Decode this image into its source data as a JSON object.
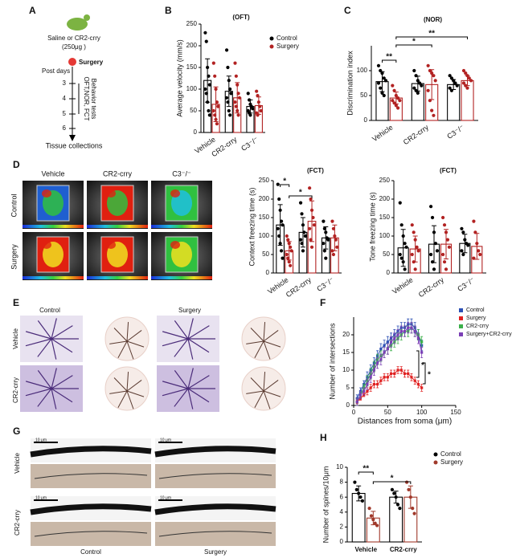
{
  "panel_labels": [
    "A",
    "B",
    "C",
    "D",
    "E",
    "F",
    "G",
    "H"
  ],
  "panel_a": {
    "treatment": "Saline or CR2-crry",
    "dose": "(250μg )",
    "event": "Surgery",
    "axis_title": "Post days",
    "days": [
      "3",
      "4",
      "5",
      "6"
    ],
    "tests": "OFT,NOR, FCT",
    "tests_sub": "Behavior tests",
    "end": "Tissue collections"
  },
  "panel_d": {
    "columns": [
      "Vehicle",
      "CR2-crry",
      "C3⁻/⁻"
    ],
    "rows": [
      "Control",
      "Surgery"
    ]
  },
  "panel_e": {
    "columns": [
      "Control",
      "Surgery"
    ],
    "rows": [
      "Vehicle",
      "CR2-crry"
    ]
  },
  "panel_g": {
    "columns": [
      "Control",
      "Surgery"
    ],
    "rows": [
      "Vehicle",
      "CR2-crry"
    ],
    "scale_bars": [
      "10 μm",
      "10 μm",
      "10 μm",
      "10 μm"
    ]
  },
  "chart_data": [
    {
      "type": "bar",
      "title": "(OFT)",
      "y_label": "Average velocity (mm/s)",
      "categories": [
        "Vehicle",
        "CR2-crry",
        "C3⁻/⁻"
      ],
      "ylim": [
        0,
        250
      ],
      "yticks": [
        0,
        50,
        100,
        150,
        200,
        250
      ],
      "legend": "upper right",
      "series": [
        {
          "name": "Control",
          "color": "#000000",
          "values": [
            120,
            95,
            60
          ],
          "errors": [
            50,
            35,
            15
          ],
          "points": [
            [
              230,
              210,
              150,
              130,
              110,
              100,
              90,
              70,
              50,
              40
            ],
            [
              190,
              150,
              120,
              100,
              90,
              80,
              70,
              50,
              40
            ],
            [
              90,
              75,
              65,
              60,
              55,
              50,
              45,
              40
            ]
          ]
        },
        {
          "name": "Surgery",
          "color": "#b22222",
          "values": [
            65,
            80,
            62
          ],
          "errors": [
            40,
            35,
            20
          ],
          "points": [
            [
              160,
              130,
              100,
              70,
              60,
              50,
              40,
              30,
              20
            ],
            [
              160,
              130,
              110,
              90,
              80,
              70,
              60,
              50,
              40
            ],
            [
              95,
              85,
              70,
              60,
              50,
              45,
              40
            ]
          ]
        }
      ]
    },
    {
      "type": "bar",
      "title": "(NOR)",
      "y_label": "Discrimination index",
      "categories": [
        "Vehicle",
        "CR2-crry",
        "C3⁻/⁻"
      ],
      "ylim": [
        0,
        150
      ],
      "yticks": [
        0,
        50,
        100
      ],
      "annotations": [
        "**",
        "*",
        "**"
      ],
      "series": [
        {
          "color": "#000000",
          "values": [
            78,
            74,
            72
          ],
          "errors": [
            20,
            15,
            10
          ],
          "points": [
            [
              110,
              100,
              95,
              85,
              80,
              75,
              65,
              55,
              50
            ],
            [
              100,
              90,
              80,
              75,
              70,
              65,
              60,
              55
            ],
            [
              90,
              85,
              80,
              75,
              70,
              65,
              60
            ]
          ]
        },
        {
          "color": "#b22222",
          "values": [
            45,
            72,
            80
          ],
          "errors": [
            12,
            30,
            10
          ],
          "points": [
            [
              70,
              60,
              50,
              45,
              40,
              40,
              35,
              30,
              25
            ],
            [
              110,
              100,
              95,
              90,
              80,
              60,
              40,
              20,
              10
            ],
            [
              100,
              95,
              90,
              85,
              80,
              75,
              70,
              65
            ]
          ]
        }
      ]
    },
    {
      "type": "bar",
      "title": "(FCT)",
      "y_label": "Context freezing time (s)",
      "categories": [
        "Vehicle",
        "CR2-crry",
        "C3⁻/⁻"
      ],
      "ylim": [
        0,
        250
      ],
      "yticks": [
        0,
        50,
        100,
        150,
        200,
        250
      ],
      "annotations": [
        "*",
        "*"
      ],
      "series": [
        {
          "color": "#000000",
          "values": [
            130,
            110,
            95
          ],
          "errors": [
            55,
            40,
            30
          ],
          "points": [
            [
              240,
              200,
              170,
              140,
              130,
              120,
              100,
              80,
              60,
              40
            ],
            [
              190,
              160,
              130,
              110,
              100,
              90,
              80,
              60
            ],
            [
              140,
              120,
              110,
              95,
              90,
              80,
              60,
              40
            ]
          ]
        },
        {
          "color": "#b22222",
          "values": [
            60,
            140,
            95
          ],
          "errors": [
            25,
            55,
            35
          ],
          "points": [
            [
              100,
              90,
              80,
              70,
              60,
              50,
              40,
              30,
              20
            ],
            [
              230,
              200,
              170,
              150,
              130,
              120,
              90,
              70
            ],
            [
              140,
              120,
              100,
              90,
              70,
              60,
              50
            ]
          ]
        }
      ]
    },
    {
      "type": "bar",
      "title": "(FCT)",
      "y_label": "Tone freezing time (s)",
      "categories": [
        "Vehicle",
        "CR2-crry",
        "C3⁻/⁻"
      ],
      "ylim": [
        0,
        250
      ],
      "yticks": [
        0,
        50,
        100,
        150,
        200,
        250
      ],
      "series": [
        {
          "color": "#000000",
          "values": [
            68,
            78,
            80
          ],
          "errors": [
            50,
            50,
            25
          ],
          "points": [
            [
              190,
              130,
              100,
              80,
              70,
              50,
              40,
              30,
              10
            ],
            [
              180,
              150,
              110,
              80,
              60,
              50,
              30,
              10
            ],
            [
              120,
              110,
              90,
              80,
              75,
              60,
              50
            ]
          ]
        },
        {
          "color": "#b22222",
          "values": [
            65,
            78,
            72
          ],
          "errors": [
            35,
            40,
            35
          ],
          "points": [
            [
              130,
              110,
              90,
              70,
              60,
              50,
              30,
              10
            ],
            [
              150,
              130,
              110,
              90,
              70,
              50,
              30,
              10
            ],
            [
              140,
              110,
              80,
              60,
              50,
              40
            ]
          ]
        }
      ]
    },
    {
      "type": "line",
      "x_label": "Distances from soma (μm)",
      "y_label": "Number of intersections",
      "xlim": [
        0,
        150
      ],
      "xticks": [
        0,
        50,
        100,
        150
      ],
      "ylim": [
        0,
        25
      ],
      "yticks": [
        0,
        5,
        10,
        15,
        20
      ],
      "legend": "upper right",
      "annotations": [
        "*",
        "*"
      ],
      "x": [
        5,
        10,
        15,
        20,
        25,
        30,
        35,
        40,
        45,
        50,
        55,
        60,
        65,
        70,
        75,
        80,
        85,
        90,
        95,
        100
      ],
      "series": [
        {
          "name": "Control",
          "color": "#2b4fb5",
          "values": [
            2,
            4,
            6,
            8,
            10,
            12,
            14,
            16,
            17,
            18,
            19,
            20,
            21,
            22,
            22,
            23,
            23,
            22,
            20,
            17
          ],
          "errors": [
            1,
            1,
            1,
            1.5,
            1.5,
            1.5,
            1.5,
            1.5,
            1.5,
            1.5,
            1.5,
            1.5,
            1.5,
            1.5,
            1.5,
            1.5,
            1.5,
            1.5,
            1.5,
            1.5
          ]
        },
        {
          "name": "Surgery",
          "color": "#e02020",
          "values": [
            1,
            2,
            3,
            4,
            5,
            6,
            6,
            7,
            8,
            8,
            9,
            9,
            10,
            10,
            9,
            9,
            8,
            7,
            6,
            5
          ],
          "errors": [
            0.5,
            0.5,
            0.5,
            1,
            1,
            1,
            1,
            1,
            1,
            1,
            1,
            1,
            1,
            1,
            1,
            1,
            1,
            1,
            1,
            1
          ]
        },
        {
          "name": "CR2-crry",
          "color": "#3cb04a",
          "values": [
            1,
            3,
            5,
            7,
            9,
            11,
            13,
            14,
            15,
            16,
            17,
            18,
            19,
            20,
            21,
            21,
            22,
            21,
            20,
            18
          ],
          "errors": [
            1,
            1,
            1,
            1.5,
            1.5,
            1.5,
            1.5,
            1.5,
            1.5,
            1.5,
            1.5,
            1.5,
            1.5,
            1.5,
            1.5,
            1.5,
            1.5,
            1.5,
            1.5,
            1.5
          ]
        },
        {
          "name": "Surgery+CR2-crry",
          "color": "#7b3fb5",
          "values": [
            1,
            3,
            4,
            6,
            8,
            10,
            12,
            13,
            15,
            16,
            18,
            19,
            20,
            21,
            21,
            22,
            22,
            21,
            19,
            15
          ],
          "errors": [
            1,
            1,
            1,
            1.5,
            1.5,
            1.5,
            1.5,
            1.5,
            1.5,
            1.5,
            1.5,
            1.5,
            1.5,
            1.5,
            1.5,
            1.5,
            1.5,
            1.5,
            1.5,
            1.5
          ]
        }
      ]
    },
    {
      "type": "bar",
      "y_label": "Number of spines/10μm",
      "categories": [
        "Vehicle",
        "CR2-crry"
      ],
      "ylim": [
        0,
        10
      ],
      "yticks": [
        0,
        2,
        4,
        6,
        8,
        10
      ],
      "legend": "upper right",
      "annotations": [
        "**",
        "*"
      ],
      "series": [
        {
          "name": "Control",
          "color": "#000000",
          "values": [
            6.5,
            6
          ],
          "errors": [
            1,
            0.8
          ],
          "points": [
            [
              8,
              7,
              6.5,
              6,
              5.5
            ],
            [
              7,
              6.5,
              6,
              5,
              4.5
            ]
          ]
        },
        {
          "name": "Surgery",
          "color": "#a0392b",
          "values": [
            3.2,
            6
          ],
          "errors": [
            0.9,
            1.5
          ],
          "points": [
            [
              4.5,
              3.5,
              3,
              2.5,
              2.2
            ],
            [
              8,
              7,
              6,
              4.5,
              3.8
            ]
          ]
        }
      ]
    }
  ]
}
